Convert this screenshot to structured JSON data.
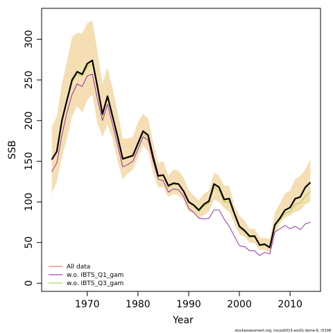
{
  "chart_data": {
    "type": "line",
    "xlabel": "Year",
    "ylabel": "SSB",
    "xlim": [
      1961,
      2016
    ],
    "ylim": [
      -10,
      338
    ],
    "xticks": [
      1970,
      1980,
      1990,
      2000,
      2010
    ],
    "yticks": [
      0,
      50,
      100,
      150,
      200,
      250,
      300
    ],
    "grid": false,
    "legend_position": "bottom-left",
    "band": {
      "color": "#F5DEB3",
      "x": [
        1963,
        1964,
        1965,
        1966,
        1967,
        1968,
        1969,
        1970,
        1971,
        1972,
        1973,
        1974,
        1975,
        1976,
        1977,
        1978,
        1979,
        1980,
        1981,
        1982,
        1983,
        1984,
        1985,
        1986,
        1987,
        1988,
        1989,
        1990,
        1991,
        1992,
        1993,
        1994,
        1995,
        1996,
        1997,
        1998,
        1999,
        2000,
        2001,
        2002,
        2003,
        2004,
        2005,
        2006,
        2007,
        2008,
        2009,
        2010,
        2011,
        2012,
        2013,
        2014
      ],
      "upper": [
        193,
        205,
        245,
        272,
        303,
        308,
        307,
        320,
        323,
        285,
        245,
        265,
        240,
        210,
        178,
        178,
        180,
        198,
        208,
        203,
        172,
        148,
        150,
        132,
        140,
        138,
        130,
        114,
        108,
        102,
        110,
        114,
        136,
        132,
        120,
        120,
        96,
        83,
        77,
        67,
        67,
        56,
        56,
        54,
        87,
        98,
        110,
        114,
        128,
        132,
        140,
        152
      ],
      "lower": [
        110,
        125,
        155,
        178,
        205,
        218,
        210,
        225,
        232,
        197,
        180,
        195,
        178,
        150,
        128,
        135,
        140,
        155,
        170,
        162,
        135,
        118,
        118,
        106,
        110,
        108,
        102,
        88,
        86,
        80,
        84,
        88,
        103,
        100,
        92,
        88,
        73,
        60,
        57,
        50,
        49,
        41,
        41,
        38,
        60,
        74,
        81,
        83,
        88,
        90,
        97,
        100
      ]
    },
    "series": [
      {
        "name": "All data",
        "color": "#E8545A",
        "values": [
          152,
          162,
          200,
          225,
          250,
          260,
          257,
          270,
          274,
          242,
          208,
          230,
          205,
          180,
          153,
          155,
          157,
          172,
          187,
          182,
          155,
          132,
          133,
          120,
          123,
          122,
          113,
          100,
          96,
          90,
          97,
          101,
          122,
          118,
          103,
          104,
          86,
          70,
          65,
          58,
          58,
          47,
          48,
          44,
          72,
          80,
          90,
          93,
          104,
          106,
          118,
          124
        ]
      },
      {
        "name": "w.o. IBTS_Q1_gam",
        "color": "#8B1A9B",
        "values": [
          137,
          148,
          182,
          210,
          232,
          245,
          242,
          255,
          257,
          227,
          200,
          220,
          195,
          170,
          143,
          146,
          150,
          165,
          180,
          176,
          150,
          128,
          126,
          112,
          116,
          115,
          107,
          92,
          87,
          80,
          79,
          80,
          90,
          90,
          79,
          70,
          58,
          46,
          45,
          40,
          40,
          34,
          38,
          36,
          63,
          67,
          71,
          67,
          70,
          66,
          73,
          75
        ]
      },
      {
        "name": "w.o. IBTS_Q3_gam",
        "color": "#9ACD32",
        "values": [
          152,
          162,
          198,
          223,
          248,
          257,
          255,
          266,
          270,
          240,
          206,
          227,
          203,
          178,
          152,
          154,
          156,
          170,
          184,
          179,
          153,
          131,
          132,
          118,
          122,
          121,
          112,
          99,
          95,
          88,
          95,
          98,
          118,
          114,
          100,
          100,
          84,
          68,
          63,
          56,
          57,
          46,
          47,
          43,
          70,
          78,
          86,
          88,
          97,
          99,
          107,
          113
        ]
      },
      {
        "name": "",
        "color": "#000000",
        "values": [
          152,
          162,
          200,
          225,
          250,
          260,
          257,
          270,
          274,
          242,
          208,
          230,
          205,
          180,
          153,
          155,
          157,
          172,
          187,
          182,
          155,
          132,
          133,
          120,
          123,
          122,
          113,
          100,
          96,
          90,
          97,
          101,
          122,
          118,
          103,
          104,
          86,
          70,
          65,
          58,
          58,
          47,
          48,
          44,
          72,
          80,
          90,
          93,
          104,
          106,
          118,
          124
        ]
      }
    ]
  },
  "footer": "stockassessment.org, nscod2015-ass01-dome-6, r5108"
}
